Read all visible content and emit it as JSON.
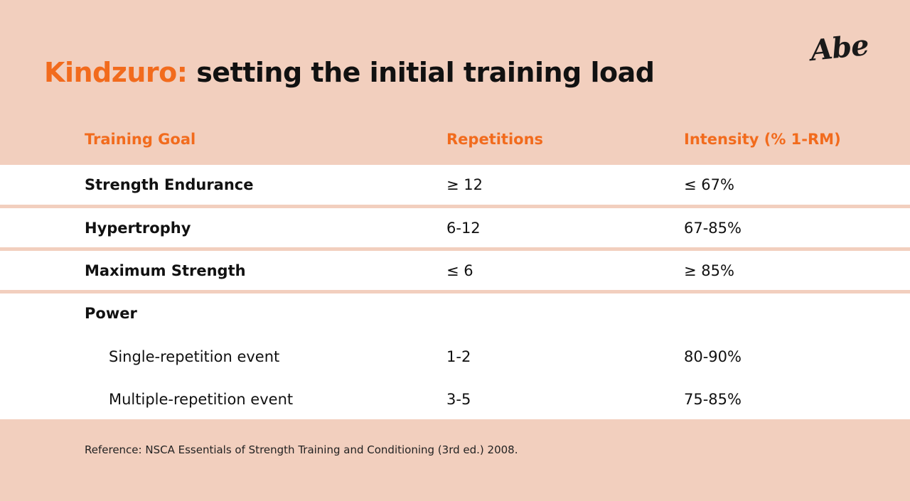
{
  "title": {
    "brand": "Kindzuro:",
    "text": "setting the initial training load"
  },
  "logo": {
    "text": "Abe"
  },
  "table": {
    "headers": [
      "Training Goal",
      "Repetitions",
      "Intensity (% 1-RM)"
    ],
    "rows": [
      {
        "goal": "Strength Endurance",
        "reps": "≥ 12",
        "intensity": "≤ 67%"
      },
      {
        "goal": "Hypertrophy",
        "reps": "6-12",
        "intensity": "67-85%"
      },
      {
        "goal": "Maximum Strength",
        "reps": "≤ 6",
        "intensity": "≥ 85%"
      },
      {
        "goal": "Power",
        "reps": "",
        "intensity": ""
      }
    ],
    "sub_rows": [
      {
        "event": "Single-repetition event",
        "reps": "1-2",
        "intensity": "80-90%"
      },
      {
        "event": "Multiple-repetition event",
        "reps": "3-5",
        "intensity": "75-85%"
      }
    ]
  },
  "reference": "Reference: NSCA Essentials of Strength Training and Conditioning (3rd ed.) 2008.",
  "colors": {
    "background": "#f2cfbe",
    "accent": "#f26b1d",
    "row_background": "#ffffff",
    "text": "#111111"
  }
}
